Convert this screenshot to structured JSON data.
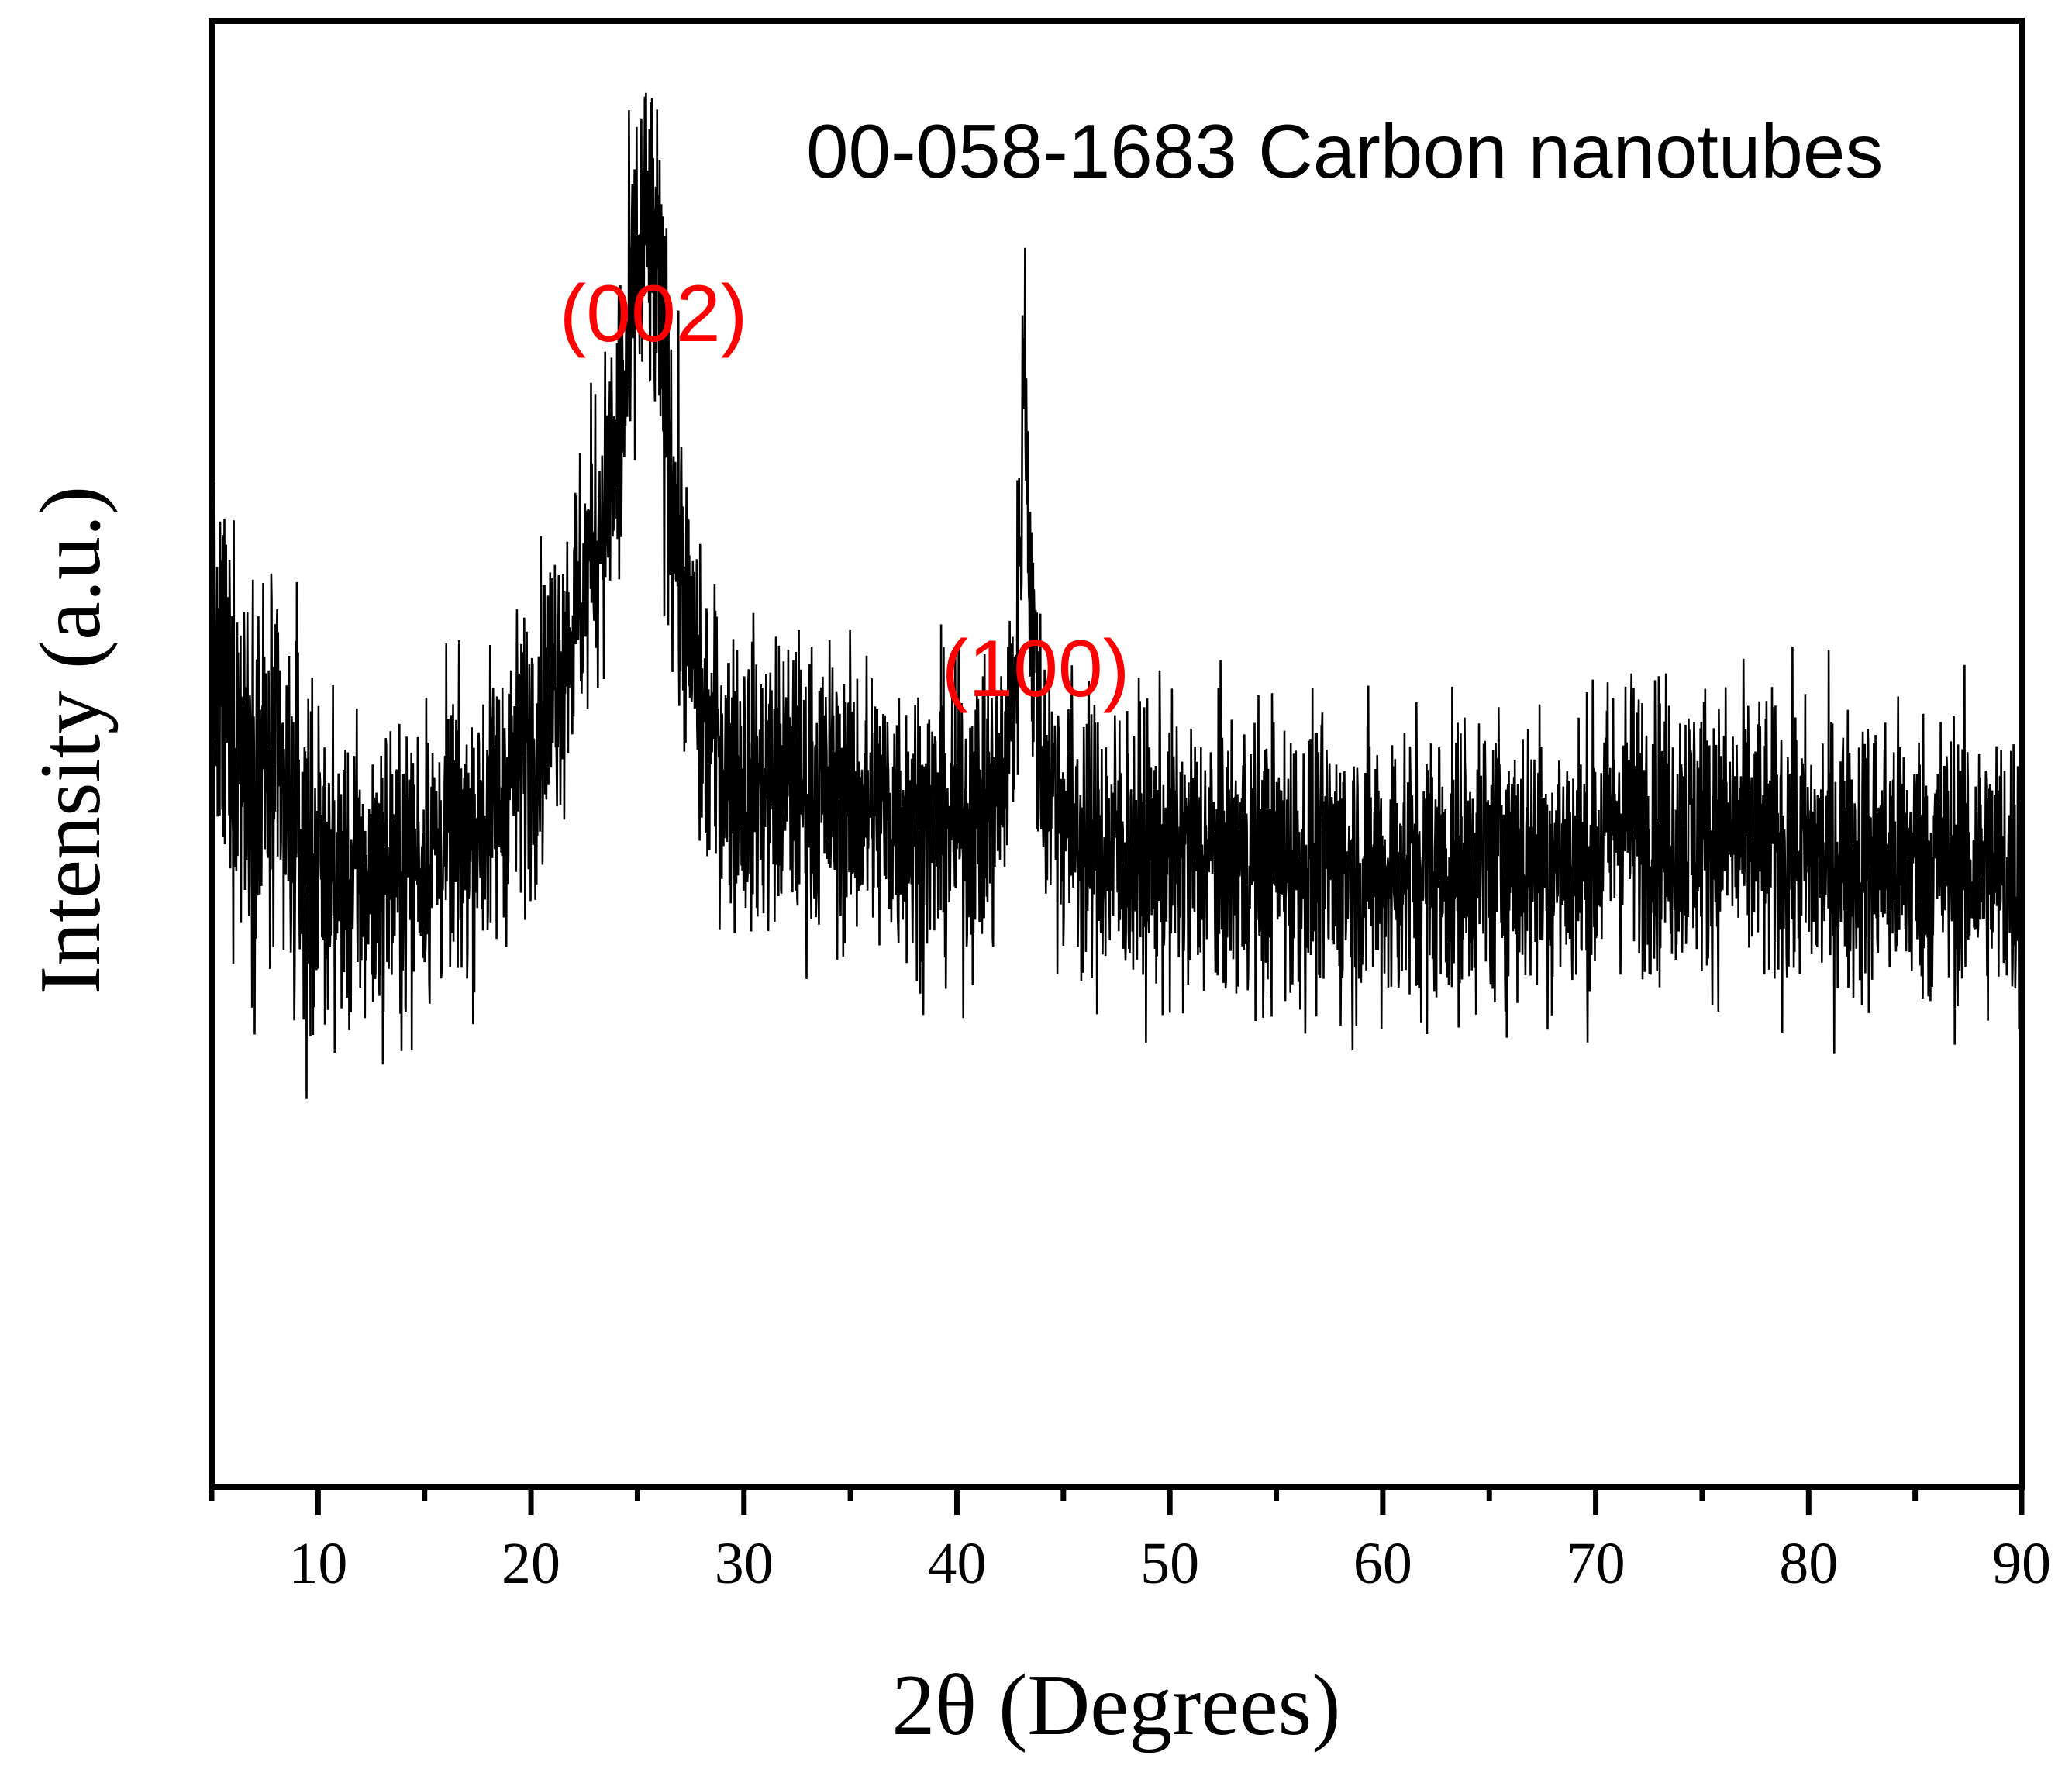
{
  "chart_data": {
    "type": "line",
    "title": "",
    "annotation_title": "00-058-1683 Carbon nanotubes",
    "xlabel": "2θ (Degrees)",
    "ylabel": "Intensity (a.u.)",
    "xlim": [
      5,
      90
    ],
    "ylim": [
      0,
      100
    ],
    "x_ticks_major": [
      10,
      20,
      30,
      40,
      50,
      60,
      70,
      80,
      90
    ],
    "x_tick_labels": [
      "10",
      "20",
      "30",
      "40",
      "50",
      "60",
      "70",
      "80",
      "90"
    ],
    "x_ticks_minor": [
      5,
      15,
      25,
      35,
      45,
      55,
      65,
      75,
      85
    ],
    "y_ticks": [],
    "grid": false,
    "legend": null,
    "line_color": "#000000",
    "annotation_color": "#ff0000",
    "peak_labels": [
      {
        "label": "(002)",
        "x": 25.0,
        "y": 93
      },
      {
        "label": "(100)",
        "x": 43.1,
        "y": 68
      }
    ],
    "series": [
      {
        "name": "XRD pattern",
        "description": "Noisy XRD diffractogram, baseline with broad (002) hump near 25.5° and sharp (100) reflection near 43.1°",
        "x": [
          5,
          7,
          10,
          12,
          15,
          18,
          20,
          22,
          24,
          25,
          25.5,
          26,
          27,
          28,
          30,
          32,
          35,
          37,
          40,
          42,
          43,
          43.2,
          44,
          46,
          50,
          55,
          60,
          65,
          70,
          71,
          73,
          75,
          80,
          85,
          90
        ],
        "y": [
          55,
          50,
          42,
          41,
          43,
          46,
          51,
          59,
          70,
          78,
          79,
          76,
          63,
          52,
          48,
          48,
          47,
          46,
          45,
          47,
          58,
          64,
          49,
          44,
          43,
          43,
          42,
          43,
          43,
          46,
          45,
          45,
          43,
          43,
          42
        ],
        "noise_amplitude": 9,
        "min_observed": 19,
        "max_observed": 96
      }
    ]
  },
  "annotations": {
    "title": "00-058-1683 Carbon nanotubes",
    "peak_002": "(002)",
    "peak_100": "(100)"
  },
  "axes": {
    "x_title": "2θ (Degrees)",
    "y_title": "Intensity (a.u.)"
  }
}
